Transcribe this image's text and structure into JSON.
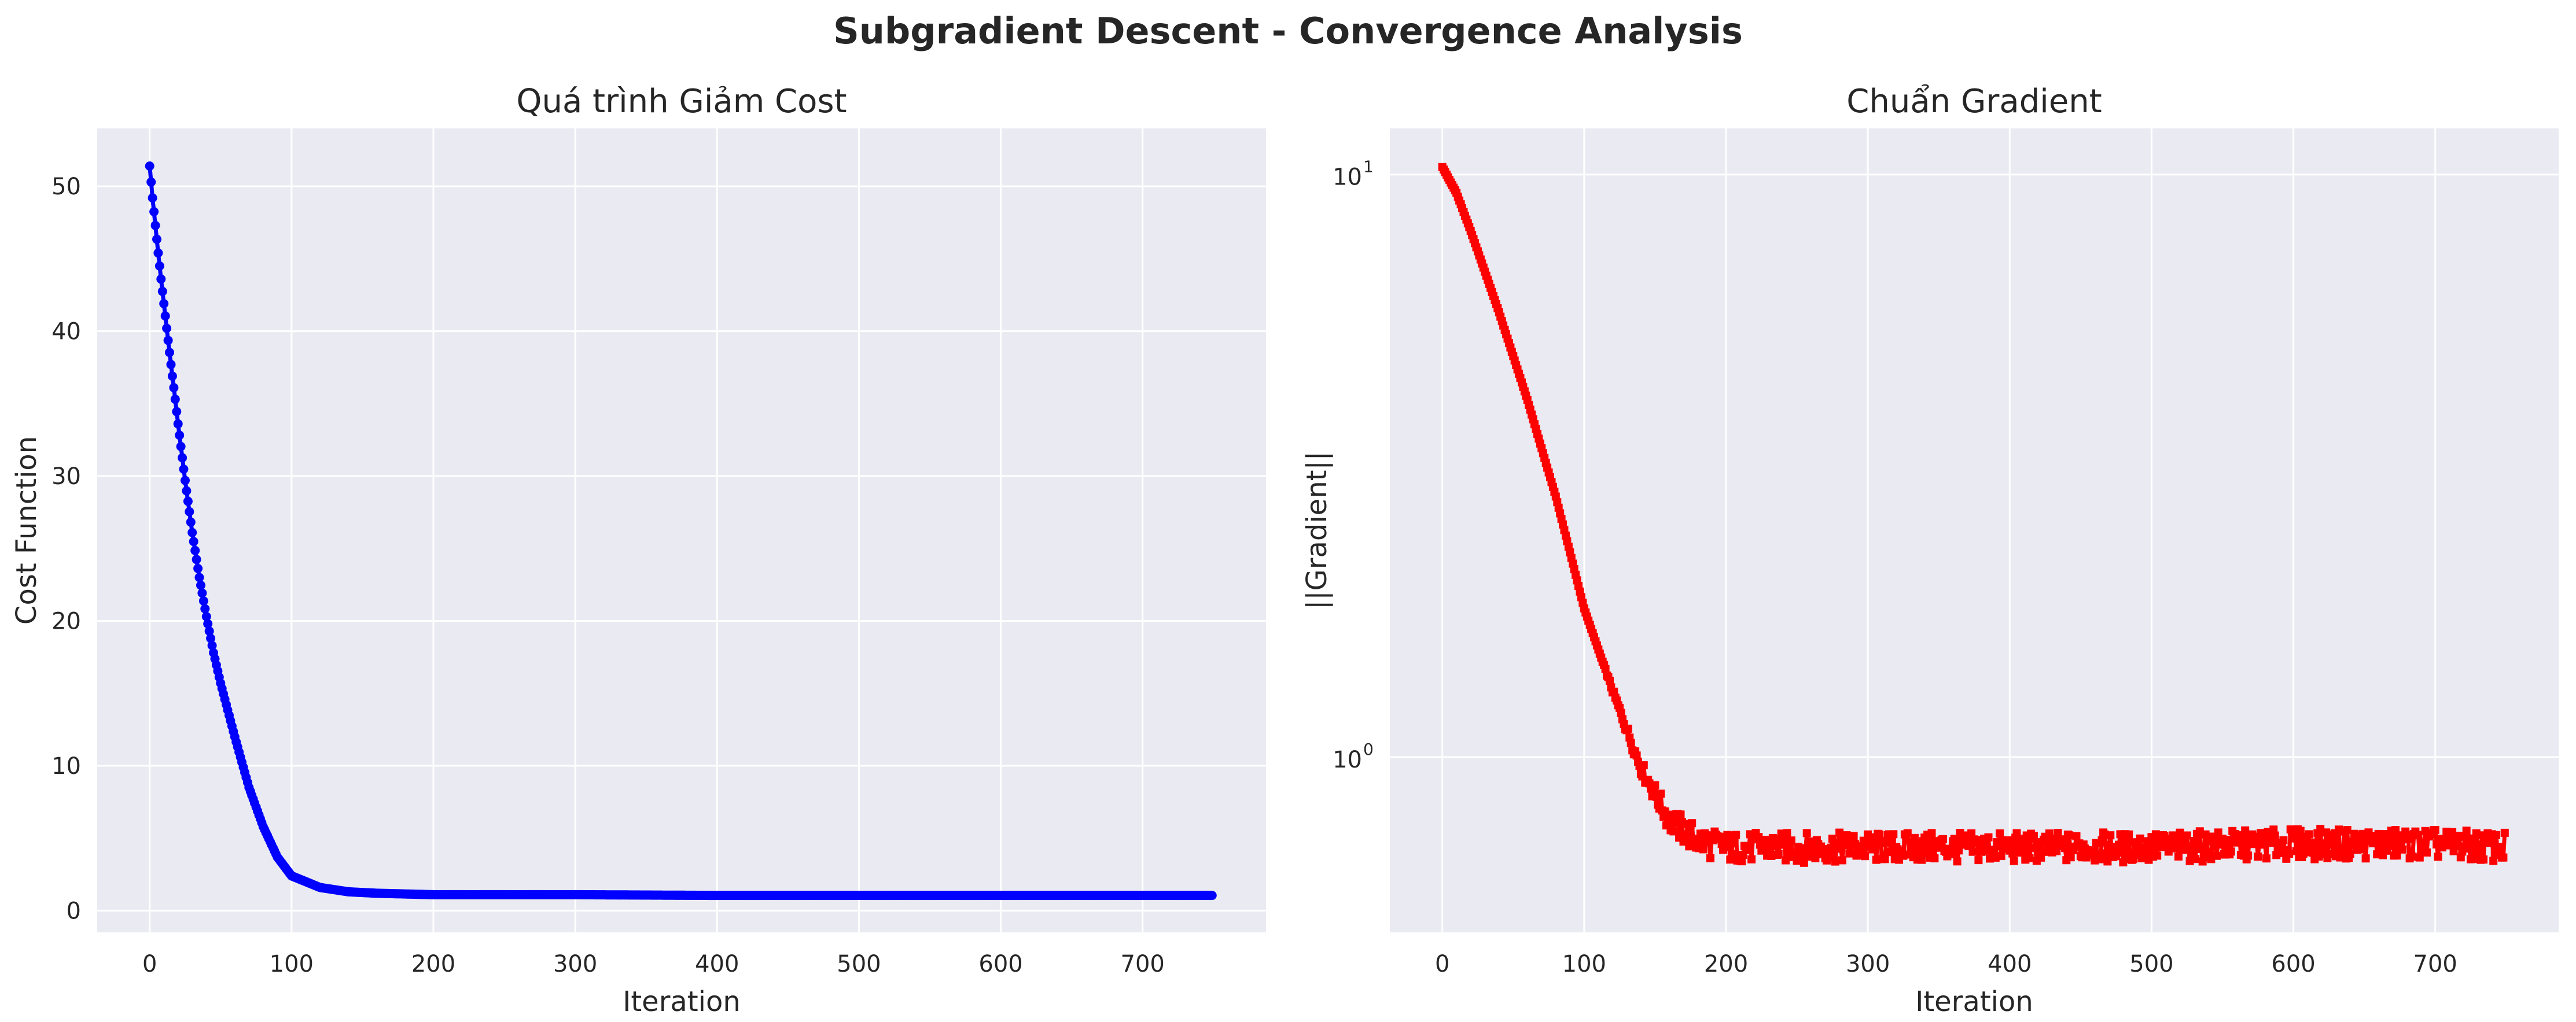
{
  "figure": {
    "suptitle": "Subgradient Descent - Convergence Analysis",
    "background": "#ffffff",
    "axes_facecolor": "#eaeaf2",
    "grid_color": "#ffffff"
  },
  "chart_data": [
    {
      "type": "line",
      "title": "Quá trình Giảm Cost",
      "xlabel": "Iteration",
      "ylabel": "Cost Function",
      "xlim": [
        -37,
        787
      ],
      "ylim": [
        -1.5,
        54.0
      ],
      "yscale": "linear",
      "grid": true,
      "xticks": [
        0,
        100,
        200,
        300,
        400,
        500,
        600,
        700
      ],
      "xtick_labels": [
        "0",
        "100",
        "200",
        "300",
        "400",
        "500",
        "600",
        "700"
      ],
      "yticks": [
        0,
        10,
        20,
        30,
        40,
        50
      ],
      "ytick_labels": [
        "0",
        "10",
        "20",
        "30",
        "40",
        "50"
      ],
      "series": [
        {
          "color": "#0000ff",
          "marker": "circle",
          "iterations": 750,
          "x": [
            0,
            2,
            4,
            6,
            8,
            10,
            12,
            15,
            18,
            20,
            25,
            30,
            35,
            40,
            45,
            50,
            60,
            70,
            80,
            90,
            100,
            120,
            140,
            160,
            180,
            200,
            250,
            300,
            400,
            500,
            600,
            700,
            749
          ],
          "values": [
            51.4,
            49.2,
            47.3,
            45.4,
            43.6,
            41.9,
            40.2,
            37.7,
            35.3,
            33.6,
            29.7,
            26.1,
            23.0,
            20.3,
            17.8,
            15.7,
            12.0,
            8.5,
            5.8,
            3.7,
            2.4,
            1.6,
            1.3,
            1.2,
            1.15,
            1.1,
            1.1,
            1.1,
            1.05,
            1.05,
            1.05,
            1.05,
            1.05
          ]
        }
      ]
    },
    {
      "type": "line",
      "title": "Chuẩn Gradient",
      "xlabel": "Iteration",
      "ylabel": "||Gradient||",
      "xlim": [
        -37,
        787
      ],
      "ylim": [
        0.5,
        12.0
      ],
      "yscale": "log",
      "grid": true,
      "xticks": [
        0,
        100,
        200,
        300,
        400,
        500,
        600,
        700
      ],
      "xtick_labels": [
        "0",
        "100",
        "200",
        "300",
        "400",
        "500",
        "600",
        "700"
      ],
      "yticks": [
        1,
        10
      ],
      "ytick_labels": [
        {
          "base": "10",
          "exp": "0"
        },
        {
          "base": "10",
          "exp": "1"
        }
      ],
      "series": [
        {
          "color": "#ff0000",
          "marker": "square",
          "iterations": 750,
          "x": [
            0,
            10,
            20,
            40,
            60,
            80,
            100,
            120,
            140,
            160,
            180,
            200,
            250,
            300,
            400,
            500,
            600,
            700,
            749
          ],
          "values": [
            10.3,
            9.3,
            8.0,
            5.8,
            4.1,
            2.8,
            1.8,
            1.3,
            0.96,
            0.78,
            0.72,
            0.7,
            0.7,
            0.7,
            0.7,
            0.7,
            0.71,
            0.71,
            0.7
          ],
          "noise_amplitude": 0.06
        }
      ]
    }
  ]
}
